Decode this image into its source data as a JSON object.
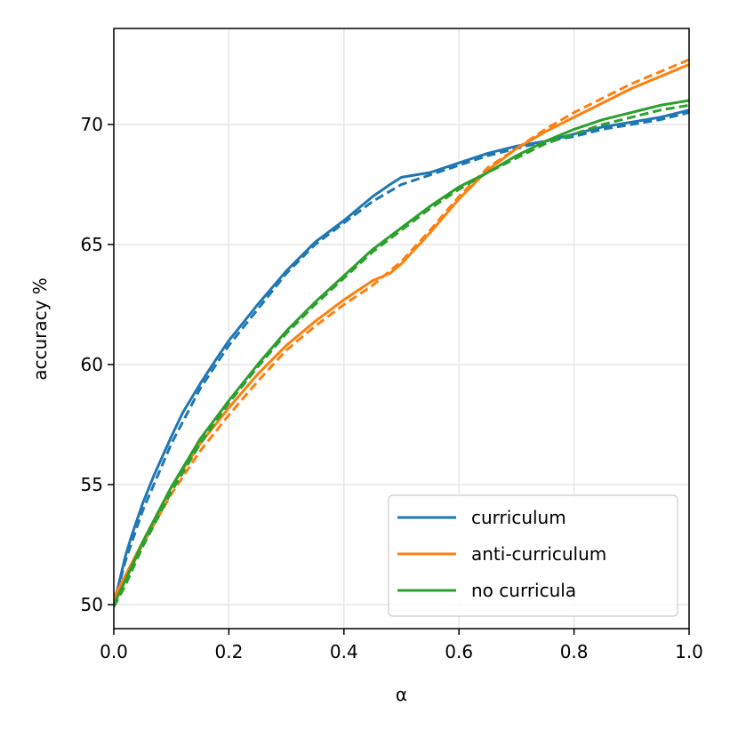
{
  "chart_data": {
    "type": "line",
    "title": "",
    "xlabel": "α",
    "ylabel": "accuracy %",
    "xlim": [
      0.0,
      1.0
    ],
    "ylim": [
      49,
      74
    ],
    "x_ticks": [
      "0.0",
      "0.2",
      "0.4",
      "0.6",
      "0.8",
      "1.0"
    ],
    "y_ticks": [
      "50",
      "55",
      "60",
      "65",
      "70"
    ],
    "grid": true,
    "legend_position": "lower-right",
    "series": [
      {
        "name": "curriculum",
        "color": "#1f77b4",
        "solid": {
          "x": [
            0.0,
            0.01,
            0.02,
            0.03,
            0.05,
            0.07,
            0.1,
            0.12,
            0.15,
            0.18,
            0.2,
            0.25,
            0.3,
            0.35,
            0.4,
            0.45,
            0.48,
            0.5,
            0.55,
            0.6,
            0.65,
            0.7,
            0.75,
            0.8,
            0.85,
            0.9,
            0.95,
            1.0
          ],
          "y": [
            50.0,
            51.0,
            52.0,
            52.8,
            54.2,
            55.4,
            57.0,
            58.0,
            59.2,
            60.3,
            61.0,
            62.5,
            63.9,
            65.1,
            66.0,
            67.0,
            67.5,
            67.8,
            68.0,
            68.4,
            68.8,
            69.1,
            69.3,
            69.6,
            69.9,
            70.1,
            70.3,
            70.6
          ]
        },
        "dashed": {
          "x": [
            0.0,
            0.02,
            0.05,
            0.1,
            0.15,
            0.2,
            0.25,
            0.3,
            0.35,
            0.4,
            0.45,
            0.5,
            0.55,
            0.6,
            0.65,
            0.7,
            0.75,
            0.8,
            0.85,
            0.9,
            0.95,
            1.0
          ],
          "y": [
            50.0,
            51.8,
            53.9,
            56.7,
            59.0,
            60.8,
            62.3,
            63.8,
            65.0,
            65.9,
            66.8,
            67.5,
            67.9,
            68.3,
            68.7,
            69.0,
            69.3,
            69.5,
            69.8,
            70.0,
            70.2,
            70.5
          ]
        }
      },
      {
        "name": "anti-curriculum",
        "color": "#ff7f0e",
        "solid": {
          "x": [
            0.0,
            0.02,
            0.05,
            0.1,
            0.15,
            0.2,
            0.25,
            0.3,
            0.35,
            0.4,
            0.45,
            0.48,
            0.5,
            0.55,
            0.6,
            0.65,
            0.7,
            0.75,
            0.8,
            0.85,
            0.9,
            0.95,
            1.0
          ],
          "y": [
            50.3,
            51.2,
            52.6,
            54.9,
            56.7,
            58.2,
            59.6,
            60.8,
            61.8,
            62.7,
            63.5,
            63.8,
            64.2,
            65.5,
            66.9,
            68.1,
            69.0,
            69.7,
            70.3,
            70.9,
            71.5,
            72.0,
            72.5
          ]
        },
        "dashed": {
          "x": [
            0.0,
            0.02,
            0.05,
            0.1,
            0.15,
            0.2,
            0.25,
            0.3,
            0.35,
            0.4,
            0.45,
            0.5,
            0.55,
            0.6,
            0.65,
            0.7,
            0.75,
            0.8,
            0.85,
            0.9,
            0.95,
            1.0
          ],
          "y": [
            50.1,
            51.0,
            52.5,
            54.6,
            56.4,
            57.9,
            59.3,
            60.6,
            61.6,
            62.5,
            63.3,
            64.3,
            65.6,
            67.0,
            68.2,
            69.0,
            69.8,
            70.5,
            71.1,
            71.7,
            72.2,
            72.7
          ]
        }
      },
      {
        "name": "no curricula",
        "color": "#2ca02c",
        "solid": {
          "x": [
            0.0,
            0.02,
            0.05,
            0.1,
            0.15,
            0.2,
            0.25,
            0.3,
            0.35,
            0.4,
            0.45,
            0.5,
            0.55,
            0.6,
            0.65,
            0.7,
            0.75,
            0.8,
            0.85,
            0.9,
            0.95,
            1.0
          ],
          "y": [
            50.0,
            51.0,
            52.6,
            54.9,
            56.9,
            58.5,
            60.0,
            61.4,
            62.6,
            63.7,
            64.8,
            65.7,
            66.6,
            67.4,
            68.0,
            68.7,
            69.3,
            69.8,
            70.2,
            70.5,
            70.8,
            71.0
          ]
        },
        "dashed": {
          "x": [
            0.0,
            0.02,
            0.05,
            0.1,
            0.15,
            0.2,
            0.25,
            0.3,
            0.35,
            0.4,
            0.45,
            0.5,
            0.55,
            0.6,
            0.65,
            0.7,
            0.75,
            0.8,
            0.85,
            0.9,
            0.95,
            1.0
          ],
          "y": [
            49.9,
            50.8,
            52.4,
            54.7,
            56.7,
            58.4,
            59.9,
            61.3,
            62.5,
            63.6,
            64.7,
            65.6,
            66.5,
            67.3,
            68.0,
            68.6,
            69.2,
            69.6,
            70.0,
            70.3,
            70.6,
            70.8
          ]
        }
      }
    ]
  }
}
